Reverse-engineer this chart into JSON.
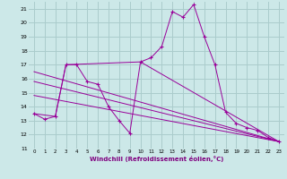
{
  "xlabel": "Windchill (Refroidissement éolien,°C)",
  "bg_color": "#cce8e8",
  "grid_color": "#aacccc",
  "line_color": "#990099",
  "xlim": [
    -0.5,
    23.5
  ],
  "ylim": [
    11,
    21.5
  ],
  "yticks": [
    11,
    12,
    13,
    14,
    15,
    16,
    17,
    18,
    19,
    20,
    21
  ],
  "xticks": [
    0,
    1,
    2,
    3,
    4,
    5,
    6,
    7,
    8,
    9,
    10,
    11,
    12,
    13,
    14,
    15,
    16,
    17,
    18,
    19,
    20,
    21,
    22,
    23
  ],
  "series_main_x": [
    0,
    1,
    2,
    3,
    4,
    5,
    6,
    7,
    8,
    9,
    10,
    11,
    12,
    13,
    14,
    15,
    16,
    17,
    18,
    19,
    20,
    21,
    22,
    23
  ],
  "series_main_y": [
    13.5,
    13.1,
    13.3,
    17.0,
    17.0,
    15.8,
    15.6,
    14.0,
    13.0,
    12.1,
    17.2,
    17.5,
    18.3,
    20.8,
    20.4,
    21.3,
    19.0,
    17.0,
    13.6,
    12.8,
    12.5,
    12.3,
    11.8,
    11.5
  ],
  "series_upper_x": [
    0,
    2,
    3,
    10,
    23
  ],
  "series_upper_y": [
    13.5,
    13.3,
    17.0,
    17.2,
    11.5
  ],
  "series_line1_x": [
    0,
    23
  ],
  "series_line1_y": [
    16.5,
    11.5
  ],
  "series_line2_x": [
    0,
    23
  ],
  "series_line2_y": [
    15.8,
    11.5
  ],
  "series_line3_x": [
    0,
    23
  ],
  "series_line3_y": [
    14.8,
    11.5
  ]
}
